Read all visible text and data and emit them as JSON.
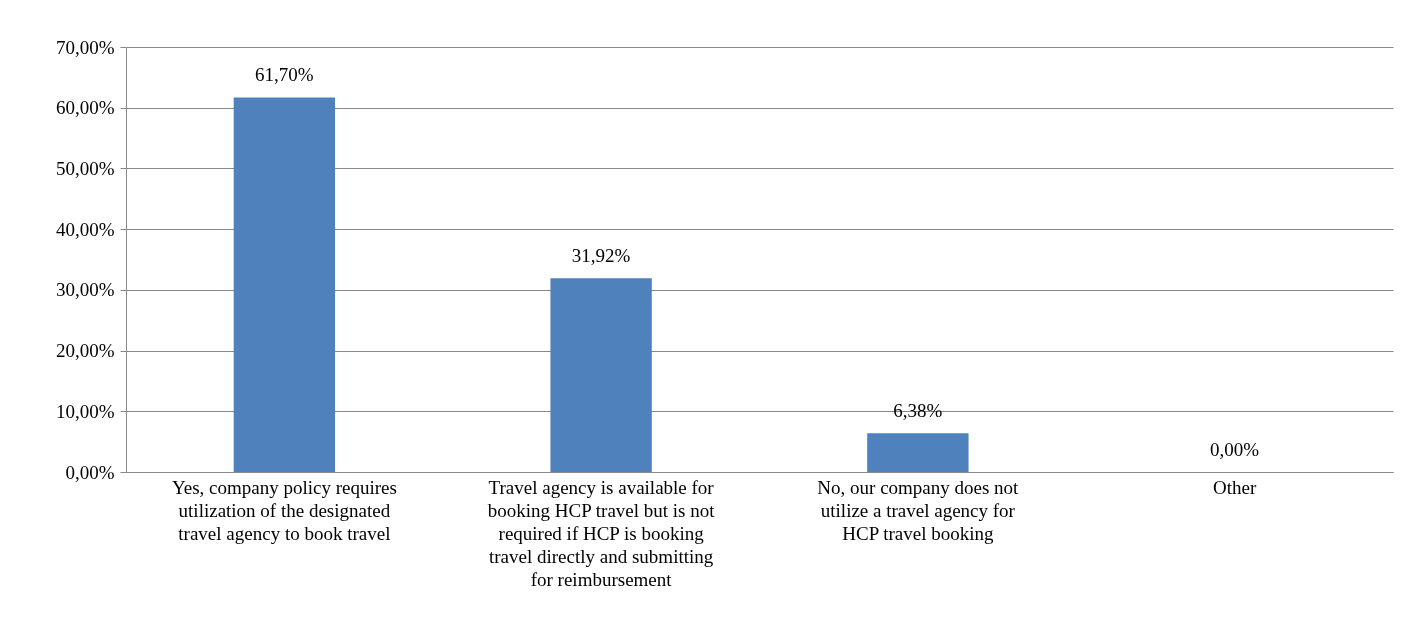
{
  "chart_data": {
    "type": "bar",
    "categories": [
      "Yes, company policy requires utilization of the designated travel agency to book travel",
      "Travel agency is available for booking HCP travel but is not required if HCP is booking travel directly and submitting for reimbursement",
      "No, our company does not utilize a travel agency for HCP travel booking",
      "Other"
    ],
    "values": [
      61.7,
      31.92,
      6.38,
      0
    ],
    "value_labels": [
      "61,70%",
      "31,92%",
      "6,38%",
      "0,00%"
    ],
    "color": "#4f81bd",
    "ylim": [
      0,
      70
    ],
    "yticks": [
      {
        "value": 0,
        "label": "0,00%"
      },
      {
        "value": 10,
        "label": "10,00%"
      },
      {
        "value": 20,
        "label": "20,00%"
      },
      {
        "value": 30,
        "label": "30,00%"
      },
      {
        "value": 40,
        "label": "40,00%"
      },
      {
        "value": 50,
        "label": "50,00%"
      },
      {
        "value": 60,
        "label": "60,00%"
      },
      {
        "value": 70,
        "label": "70,00%"
      }
    ],
    "grid": "y"
  }
}
